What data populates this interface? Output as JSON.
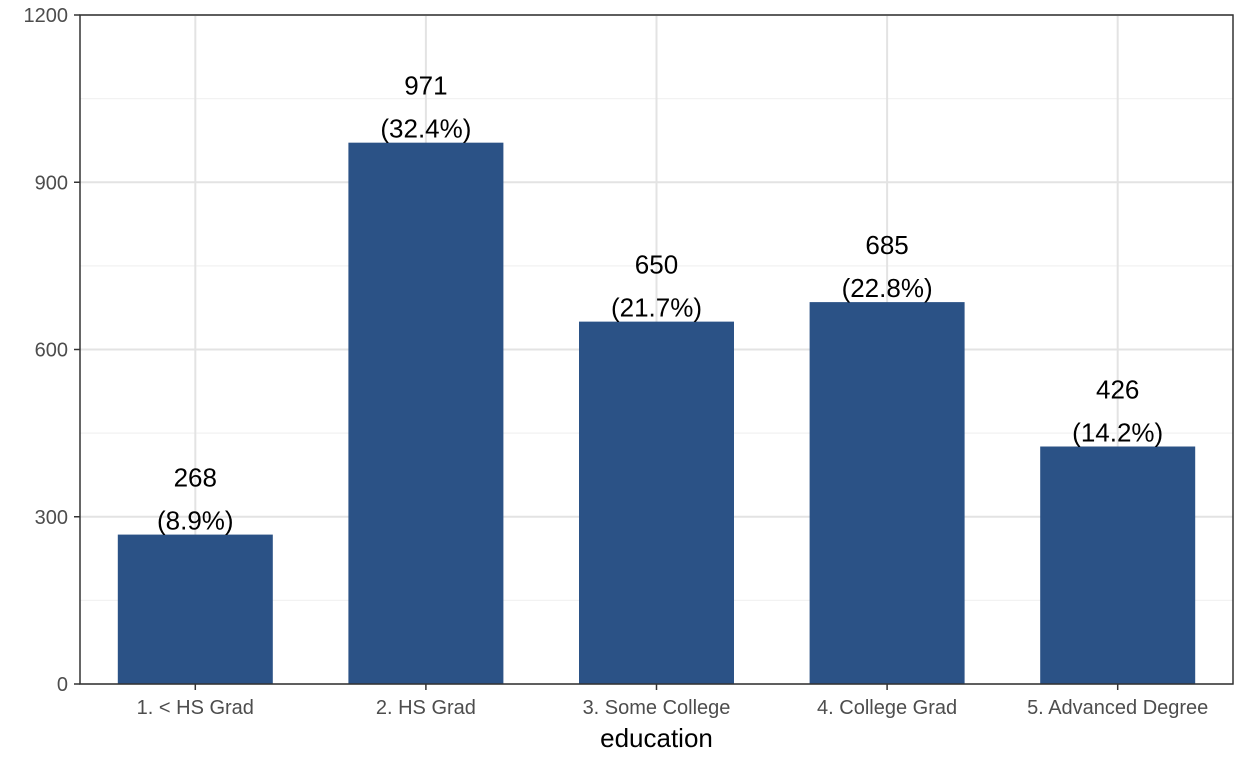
{
  "chart_data": {
    "type": "bar",
    "title": "",
    "xlabel": "education",
    "ylabel": "",
    "categories": [
      "1. < HS Grad",
      "2. HS Grad",
      "3. Some College",
      "4. College Grad",
      "5. Advanced Degree"
    ],
    "values": [
      268,
      971,
      650,
      685,
      426
    ],
    "value_labels": [
      "268",
      "971",
      "650",
      "685",
      "426"
    ],
    "percent_labels": [
      "(8.9%)",
      "(32.4%)",
      "(21.7%)",
      "(22.8%)",
      "(14.2%)"
    ],
    "ylim": [
      0,
      1200
    ],
    "yticks": [
      0,
      300,
      600,
      900,
      1200
    ],
    "ytick_labels": [
      "0",
      "300",
      "600",
      "900",
      "1200"
    ],
    "grid": true,
    "legend": "none",
    "colors": {
      "bar": "#2b5286",
      "grid_major": "#e3e3e3",
      "grid_minor": "#f2f2f2",
      "panel_border": "#333333",
      "tick_text": "#4d4d4d",
      "text": "#000000"
    }
  }
}
